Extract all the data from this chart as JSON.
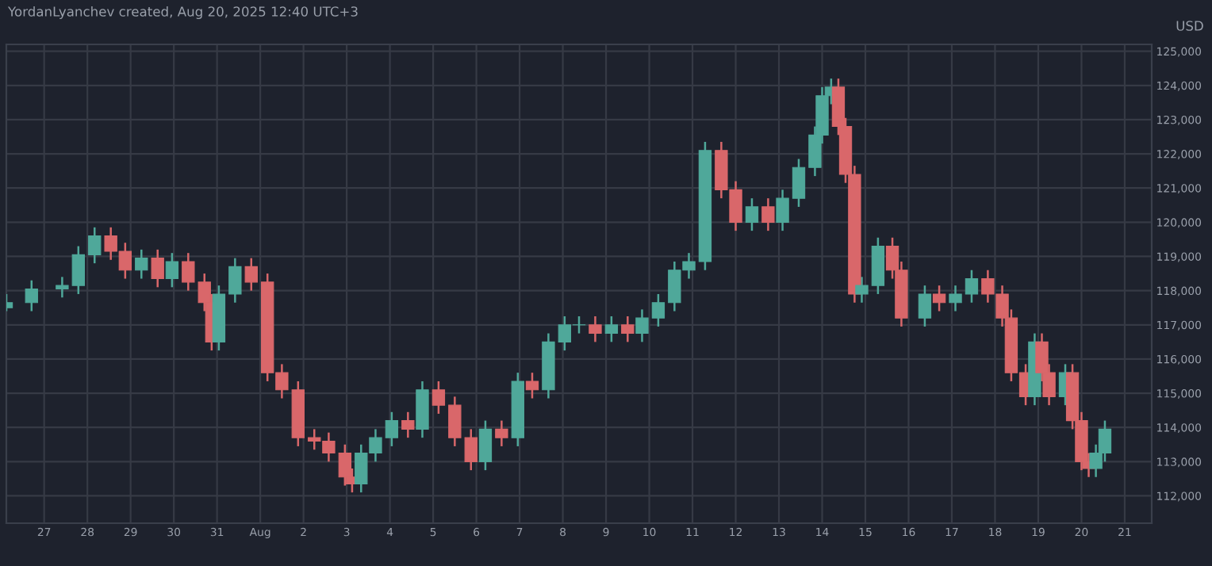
{
  "chart_data": {
    "type": "candlestick",
    "title": "YordanLyanchev created, Aug 20, 2025 12:40 UTC+3",
    "ylabel": "USD",
    "x": [
      "2025-07-26T03:00",
      "2025-07-26T17:00",
      "2025-07-27T10:00",
      "2025-07-27T19:00",
      "2025-07-28T04:00",
      "2025-07-28T13:00",
      "2025-07-28T21:00",
      "2025-07-29T06:00",
      "2025-07-29T15:00",
      "2025-07-29T23:00",
      "2025-07-30T08:00",
      "2025-07-30T17:00",
      "2025-07-30T21:00",
      "2025-07-31T01:00",
      "2025-07-31T10:00",
      "2025-07-31T19:00",
      "2025-08-01T04:00",
      "2025-08-01T12:00",
      "2025-08-01T21:00",
      "2025-08-02T06:00",
      "2025-08-02T14:00",
      "2025-08-02T23:00",
      "2025-08-03T03:00",
      "2025-08-03T08:00",
      "2025-08-03T16:00",
      "2025-08-04T01:00",
      "2025-08-04T10:00",
      "2025-08-04T18:00",
      "2025-08-05T03:00",
      "2025-08-05T12:00",
      "2025-08-05T21:00",
      "2025-08-06T05:00",
      "2025-08-06T14:00",
      "2025-08-06T23:00",
      "2025-08-07T07:00",
      "2025-08-07T16:00",
      "2025-08-08T01:00",
      "2025-08-08T09:00",
      "2025-08-08T18:00",
      "2025-08-09T03:00",
      "2025-08-09T12:00",
      "2025-08-09T20:00",
      "2025-08-10T05:00",
      "2025-08-10T14:00",
      "2025-08-10T22:00",
      "2025-08-11T07:00",
      "2025-08-11T16:00",
      "2025-08-12T00:00",
      "2025-08-12T09:00",
      "2025-08-12T18:00",
      "2025-08-13T02:00",
      "2025-08-13T11:00",
      "2025-08-13T20:00",
      "2025-08-14T00:00",
      "2025-08-14T05:00",
      "2025-08-14T09:00",
      "2025-08-14T13:00",
      "2025-08-14T18:00",
      "2025-08-14T22:00",
      "2025-08-15T07:00",
      "2025-08-15T15:00",
      "2025-08-15T20:00",
      "2025-08-16T09:00",
      "2025-08-16T17:00",
      "2025-08-17T02:00",
      "2025-08-17T11:00",
      "2025-08-17T20:00",
      "2025-08-18T04:00",
      "2025-08-18T09:00",
      "2025-08-18T17:00",
      "2025-08-18T22:00",
      "2025-08-19T02:00",
      "2025-08-19T06:00",
      "2025-08-19T15:00",
      "2025-08-19T19:00",
      "2025-08-20T00:00",
      "2025-08-20T04:00",
      "2025-08-20T08:00",
      "2025-08-20T13:00"
    ],
    "ohlc": [
      [
        117500,
        117900,
        117400,
        117650
      ],
      [
        117650,
        118300,
        117400,
        118050
      ],
      [
        118050,
        118400,
        117800,
        118150
      ],
      [
        118150,
        119300,
        117900,
        119050
      ],
      [
        119050,
        119850,
        118800,
        119600
      ],
      [
        119600,
        119850,
        118900,
        119150
      ],
      [
        119150,
        119400,
        118350,
        118600
      ],
      [
        118600,
        119200,
        118350,
        118950
      ],
      [
        118950,
        119200,
        118100,
        118350
      ],
      [
        118350,
        119100,
        118100,
        118850
      ],
      [
        118850,
        119100,
        118000,
        118250
      ],
      [
        118250,
        118500,
        117400,
        117650
      ],
      [
        117650,
        117900,
        116250,
        116500
      ],
      [
        116500,
        118150,
        116250,
        117900
      ],
      [
        117900,
        118950,
        117650,
        118700
      ],
      [
        118700,
        118950,
        118000,
        118250
      ],
      [
        118250,
        118500,
        115350,
        115600
      ],
      [
        115600,
        115850,
        114850,
        115100
      ],
      [
        115100,
        115350,
        113450,
        113700
      ],
      [
        113700,
        113950,
        113350,
        113600
      ],
      [
        113600,
        113850,
        113000,
        113250
      ],
      [
        113250,
        113500,
        112300,
        112550
      ],
      [
        112550,
        112800,
        112100,
        112350
      ],
      [
        112350,
        113500,
        112100,
        113250
      ],
      [
        113250,
        113950,
        113000,
        113700
      ],
      [
        113700,
        114450,
        113450,
        114200
      ],
      [
        114200,
        114450,
        113700,
        113950
      ],
      [
        113950,
        115350,
        113700,
        115100
      ],
      [
        115100,
        115350,
        114400,
        114650
      ],
      [
        114650,
        114900,
        113450,
        113700
      ],
      [
        113700,
        113950,
        112750,
        113000
      ],
      [
        113000,
        114200,
        112750,
        113950
      ],
      [
        113950,
        114200,
        113450,
        113700
      ],
      [
        113700,
        115600,
        113450,
        115350
      ],
      [
        115350,
        115600,
        114850,
        115100
      ],
      [
        115100,
        116750,
        114850,
        116500
      ],
      [
        116500,
        117250,
        116250,
        117000
      ],
      [
        117000,
        117250,
        116750,
        117000
      ],
      [
        117000,
        117250,
        116500,
        116750
      ],
      [
        116750,
        117250,
        116500,
        117000
      ],
      [
        117000,
        117250,
        116500,
        116750
      ],
      [
        116750,
        117450,
        116500,
        117200
      ],
      [
        117200,
        117900,
        116950,
        117650
      ],
      [
        117650,
        118850,
        117400,
        118600
      ],
      [
        118600,
        119100,
        118350,
        118850
      ],
      [
        118850,
        122350,
        118600,
        122100
      ],
      [
        122100,
        122350,
        120700,
        120950
      ],
      [
        120950,
        121200,
        119750,
        120000
      ],
      [
        120000,
        120700,
        119750,
        120450
      ],
      [
        120450,
        120700,
        119750,
        120000
      ],
      [
        120000,
        120950,
        119750,
        120700
      ],
      [
        120700,
        121850,
        120450,
        121600
      ],
      [
        121600,
        122800,
        121350,
        122550
      ],
      [
        122550,
        123950,
        122300,
        123700
      ],
      [
        123700,
        124200,
        123450,
        123950
      ],
      [
        123950,
        124200,
        122550,
        122800
      ],
      [
        122800,
        123050,
        121150,
        121400
      ],
      [
        121400,
        121650,
        117650,
        117900
      ],
      [
        117900,
        118400,
        117650,
        118150
      ],
      [
        118150,
        119550,
        117900,
        119300
      ],
      [
        119300,
        119550,
        118350,
        118600
      ],
      [
        118600,
        118850,
        116950,
        117200
      ],
      [
        117200,
        118150,
        116950,
        117900
      ],
      [
        117900,
        118150,
        117400,
        117650
      ],
      [
        117650,
        118150,
        117400,
        117900
      ],
      [
        117900,
        118600,
        117650,
        118350
      ],
      [
        118350,
        118600,
        117650,
        117900
      ],
      [
        117900,
        118150,
        116950,
        117200
      ],
      [
        117200,
        117450,
        115350,
        115600
      ],
      [
        115600,
        115850,
        114650,
        114900
      ],
      [
        114900,
        116750,
        114650,
        116500
      ],
      [
        116500,
        116750,
        115350,
        115600
      ],
      [
        115600,
        115850,
        114650,
        114900
      ],
      [
        114900,
        115850,
        114650,
        115600
      ],
      [
        115600,
        115850,
        113950,
        114200
      ],
      [
        114200,
        114450,
        112750,
        113000
      ],
      [
        113000,
        113250,
        112550,
        112800
      ],
      [
        112800,
        113500,
        112550,
        113250
      ],
      [
        113250,
        114200,
        113000,
        113950
      ]
    ],
    "xlim": [
      "2025-07-26T03:00",
      "2025-08-21T15:00"
    ],
    "xticks": [
      {
        "value": "2025-07-27",
        "label": "27"
      },
      {
        "value": "2025-07-28",
        "label": "28"
      },
      {
        "value": "2025-07-29",
        "label": "29"
      },
      {
        "value": "2025-07-30",
        "label": "30"
      },
      {
        "value": "2025-07-31",
        "label": "31"
      },
      {
        "value": "2025-08-01",
        "label": "Aug"
      },
      {
        "value": "2025-08-02",
        "label": "2"
      },
      {
        "value": "2025-08-03",
        "label": "3"
      },
      {
        "value": "2025-08-04",
        "label": "4"
      },
      {
        "value": "2025-08-05",
        "label": "5"
      },
      {
        "value": "2025-08-06",
        "label": "6"
      },
      {
        "value": "2025-08-07",
        "label": "7"
      },
      {
        "value": "2025-08-08",
        "label": "8"
      },
      {
        "value": "2025-08-09",
        "label": "9"
      },
      {
        "value": "2025-08-10",
        "label": "10"
      },
      {
        "value": "2025-08-11",
        "label": "11"
      },
      {
        "value": "2025-08-12",
        "label": "12"
      },
      {
        "value": "2025-08-13",
        "label": "13"
      },
      {
        "value": "2025-08-14",
        "label": "14"
      },
      {
        "value": "2025-08-15",
        "label": "15"
      },
      {
        "value": "2025-08-16",
        "label": "16"
      },
      {
        "value": "2025-08-17",
        "label": "17"
      },
      {
        "value": "2025-08-18",
        "label": "18"
      },
      {
        "value": "2025-08-19",
        "label": "19"
      },
      {
        "value": "2025-08-20",
        "label": "20"
      },
      {
        "value": "2025-08-21",
        "label": "21"
      }
    ],
    "ylim": [
      111200,
      125200
    ],
    "yticks": [
      {
        "value": 112000,
        "label": "112,000"
      },
      {
        "value": 113000,
        "label": "113,000"
      },
      {
        "value": 114000,
        "label": "114,000"
      },
      {
        "value": 115000,
        "label": "115,000"
      },
      {
        "value": 116000,
        "label": "116,000"
      },
      {
        "value": 117000,
        "label": "117,000"
      },
      {
        "value": 118000,
        "label": "118,000"
      },
      {
        "value": 119000,
        "label": "119,000"
      },
      {
        "value": 120000,
        "label": "120,000"
      },
      {
        "value": 121000,
        "label": "121,000"
      },
      {
        "value": 122000,
        "label": "122,000"
      },
      {
        "value": 123000,
        "label": "123,000"
      },
      {
        "value": 124000,
        "label": "124,000"
      },
      {
        "value": 125000,
        "label": "125,000"
      }
    ],
    "grid": true
  }
}
